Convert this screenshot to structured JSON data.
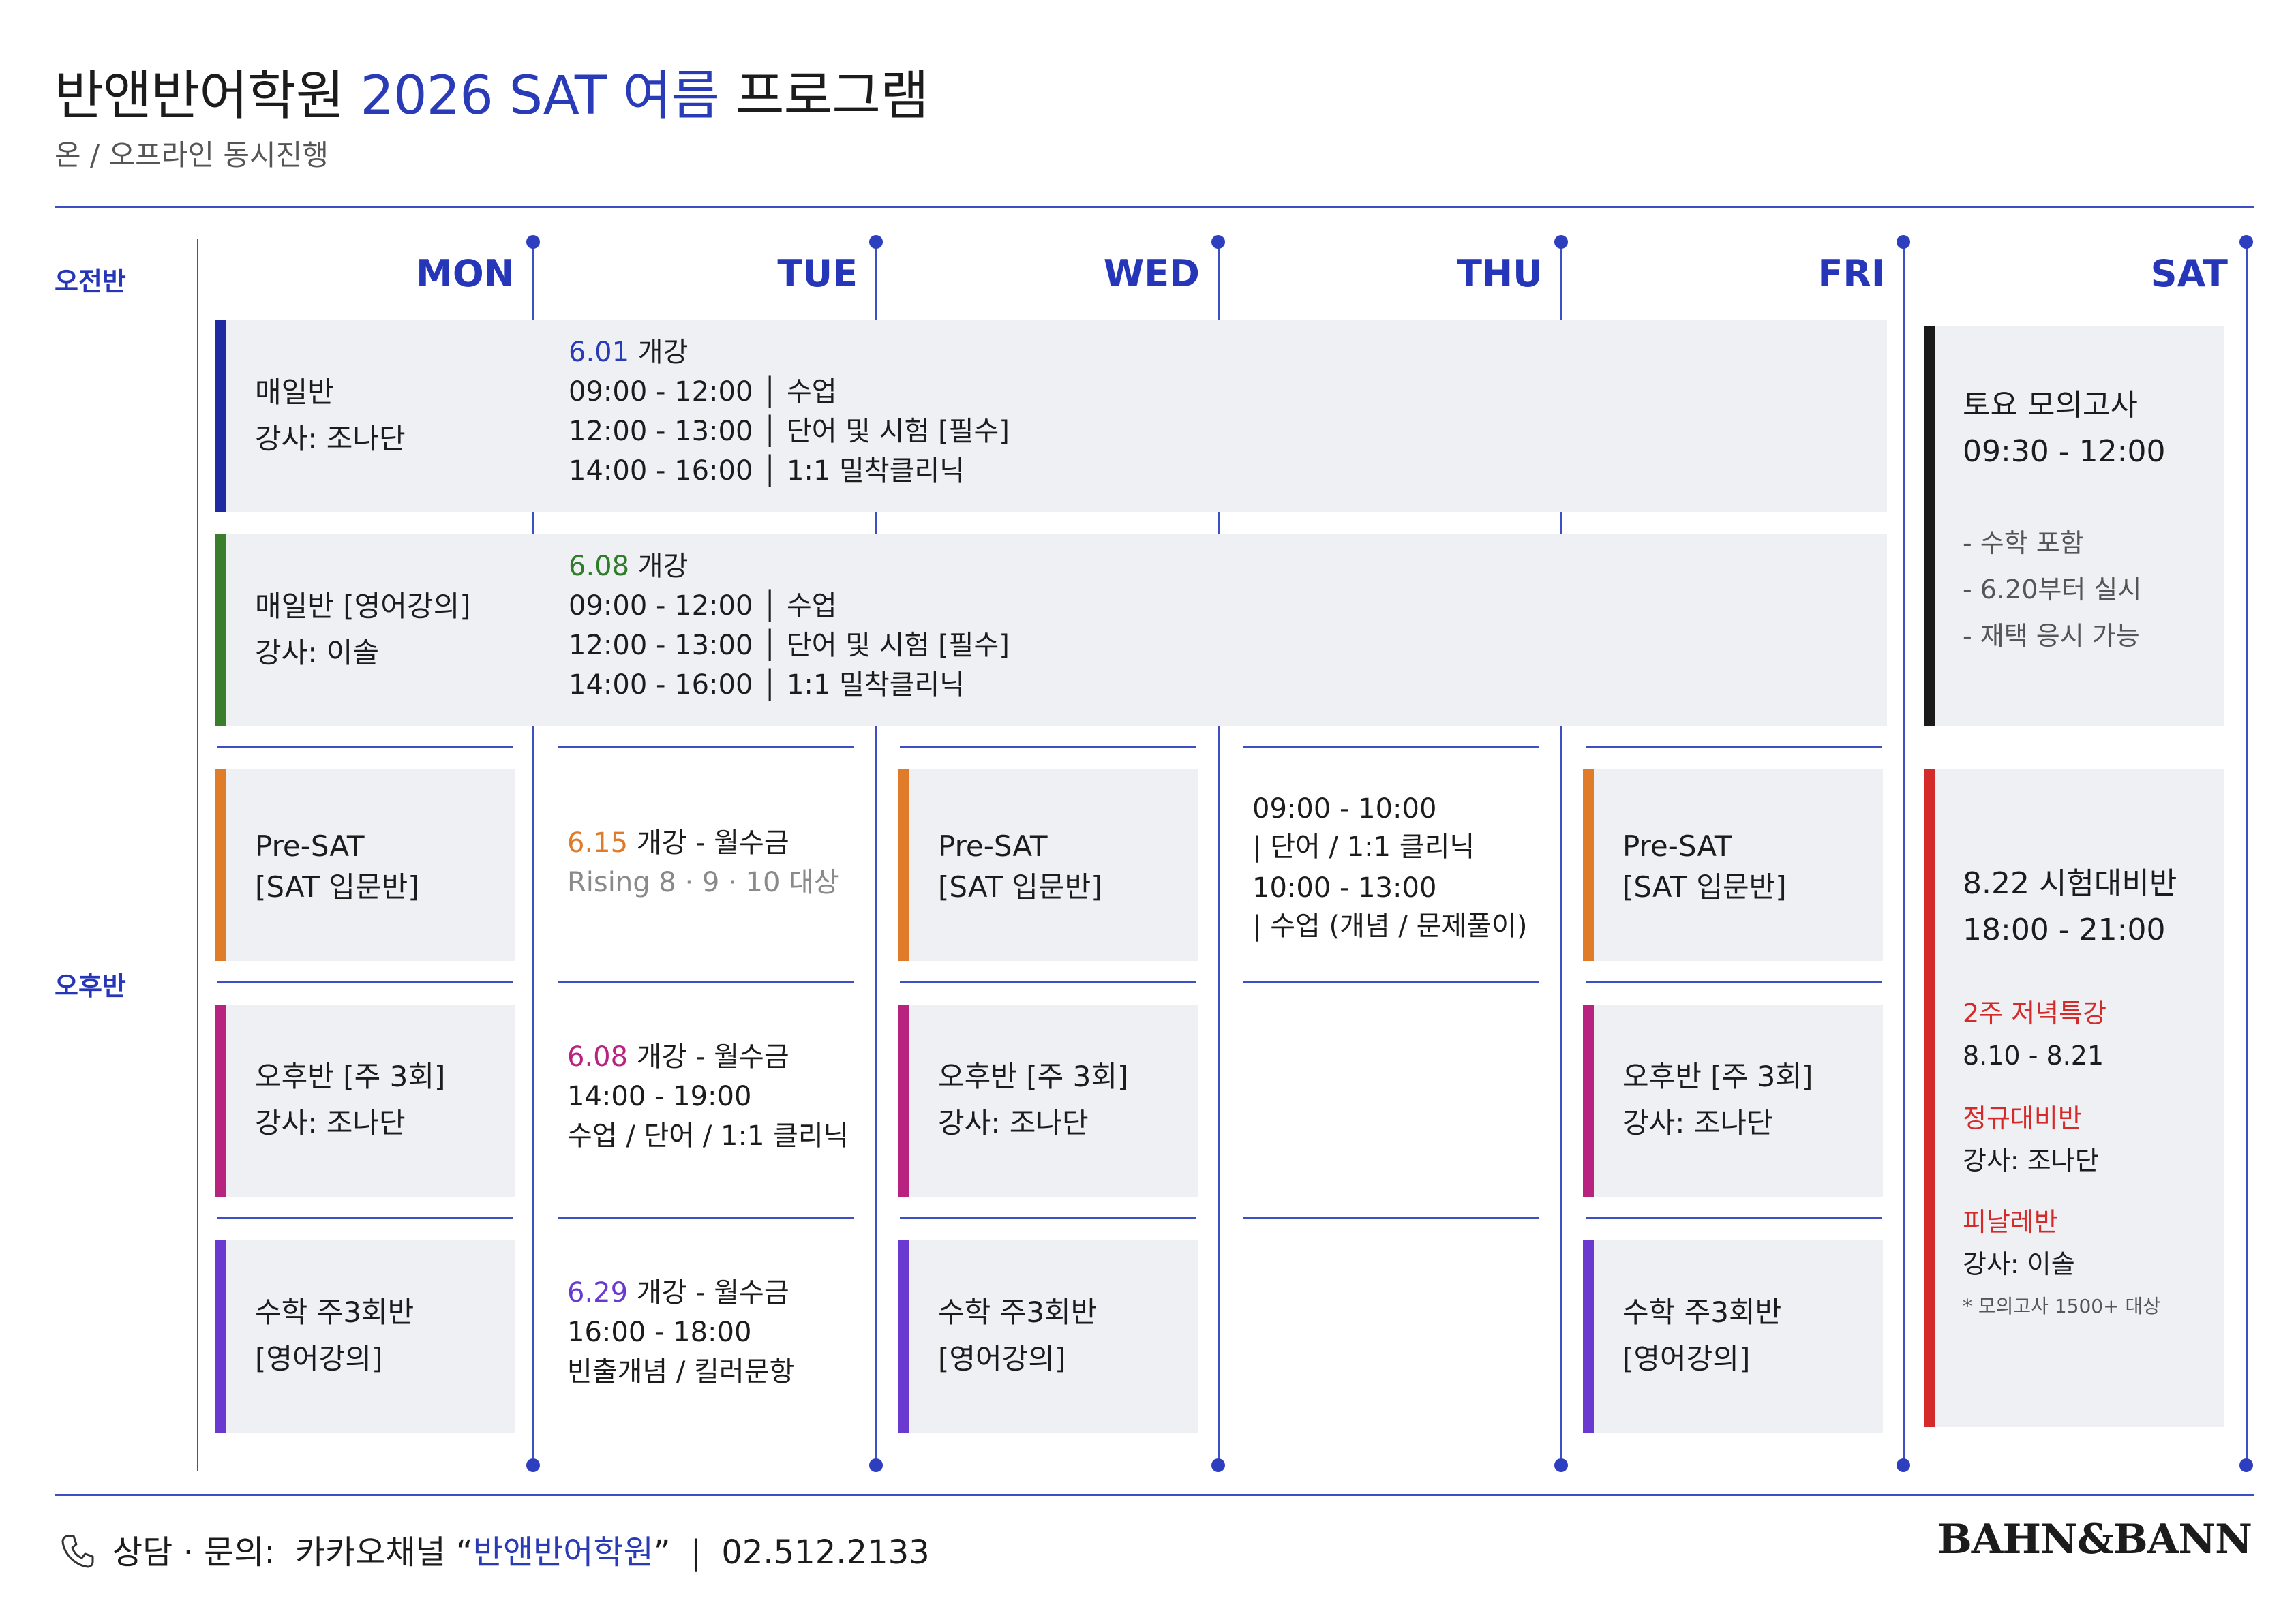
{
  "header": {
    "title_prefix": "반앤반어학원",
    "title_accent": "2026 SAT 여름",
    "title_suffix": "프로그램",
    "subtitle": "온 / 오프라인 동시진행"
  },
  "days": [
    "MON",
    "TUE",
    "WED",
    "THU",
    "FRI",
    "SAT"
  ],
  "sessions": {
    "morning": "오전반",
    "afternoon": "오후반"
  },
  "morning": {
    "daily": {
      "title": "매일반",
      "teacher": "강사: 조나단",
      "open_date": "6.01",
      "open_label": "개강",
      "rows": [
        {
          "time": "09:00 - 12:00",
          "desc": "수업"
        },
        {
          "time": "12:00 - 13:00",
          "desc": "단어 및 시험 [필수]"
        },
        {
          "time": "14:00 - 16:00",
          "desc": "1:1 밀착클리닉"
        }
      ]
    },
    "daily_eng": {
      "title": "매일반 [영어강의]",
      "teacher": "강사: 이솔",
      "open_date": "6.08",
      "open_label": "개강",
      "rows": [
        {
          "time": "09:00 - 12:00",
          "desc": "수업"
        },
        {
          "time": "12:00 - 13:00",
          "desc": "단어 및 시험 [필수]"
        },
        {
          "time": "14:00 - 16:00",
          "desc": "1:1 밀착클리닉"
        }
      ]
    },
    "sat_mock": {
      "title": "토요 모의고사",
      "time": "09:30 - 12:00",
      "notes": [
        "- 수학 포함",
        "- 6.20부터 실시",
        "- 재택 응시 가능"
      ]
    }
  },
  "afternoon": {
    "presat": {
      "line1": "Pre-SAT",
      "line2": "[SAT 입문반]"
    },
    "afternoon_class": {
      "line1": "오후반 [주 3회]",
      "line2": "강사: 조나단"
    },
    "math": {
      "line1": "수학 주3회반",
      "line2": "[영어강의]"
    },
    "tue1": {
      "date": "6.15",
      "rest": "개강 - 월수금",
      "sub": "Rising 8 · 9 · 10 대상"
    },
    "tue2": {
      "date": "6.08",
      "rest": "개강 - 월수금",
      "time": "14:00 - 19:00",
      "desc": "수업 / 단어 / 1:1 클리닉"
    },
    "tue3": {
      "date": "6.29",
      "rest": "개강 - 월수금",
      "time": "16:00 - 18:00",
      "desc": "빈출개념 / 킬러문항"
    },
    "thu": {
      "time1": "09:00 - 10:00",
      "desc1": "| 단어 / 1:1 클리닉",
      "time2": "10:00 - 13:00",
      "desc2": "| 수업 (개념 / 문제풀이)"
    },
    "sat": {
      "title": "8.22 시험대비반",
      "time": "18:00 - 21:00",
      "special_label": "2주 저녁특강",
      "special_dates": "8.10 - 8.21",
      "regular_label": "정규대비반",
      "regular_teacher": "강사: 조나단",
      "final_label": "피날레반",
      "final_teacher": "강사: 이솔",
      "footnote": "* 모의고사 1500+ 대상"
    }
  },
  "footer": {
    "consult": "상담 · 문의:",
    "channel_prefix": "카카오채널 “",
    "channel_name": "반앤반어학원",
    "channel_suffix": "”",
    "separator": "|",
    "phone": "02.512.2133",
    "logo": "BAHN&BANN"
  },
  "colors": {
    "accent": "#2a3bb8",
    "navy": "#1f2aa0",
    "green": "#3a7d2a",
    "orange": "#e07b2a",
    "magenta": "#b8237f",
    "purple": "#6a3ad0",
    "black": "#1a1a1a",
    "red": "#d42a2a",
    "card_bg": "#eff0f4"
  }
}
